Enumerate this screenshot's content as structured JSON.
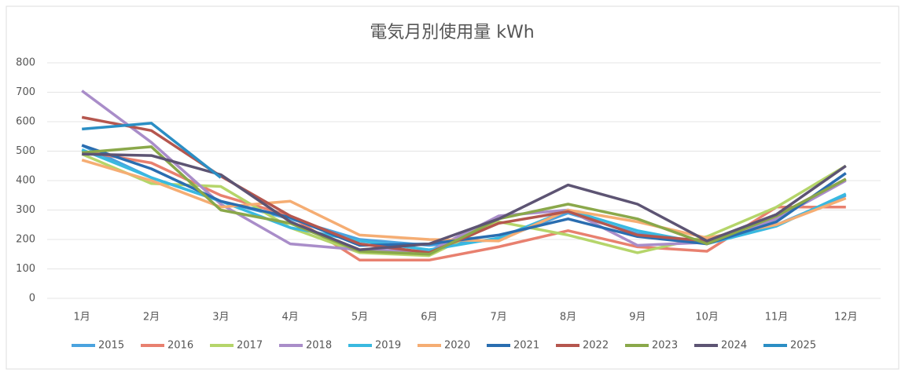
{
  "chart_data": {
    "type": "line",
    "title": "電気月別使用量 kWh",
    "categories": [
      "1月",
      "2月",
      "3月",
      "4月",
      "5月",
      "6月",
      "7月",
      "8月",
      "9月",
      "10月",
      "11月",
      "12月"
    ],
    "ylim": [
      0,
      800
    ],
    "yticks": [
      0,
      100,
      200,
      300,
      400,
      500,
      600,
      700,
      800
    ],
    "grid": true,
    "legend": "bottom",
    "series": [
      {
        "name": "2015",
        "color": "#4aa3df",
        "values": [
          520,
          410,
          330,
          270,
          200,
          180,
          200,
          290,
          220,
          190,
          250,
          350
        ]
      },
      {
        "name": "2016",
        "color": "#e8806f",
        "values": [
          500,
          460,
          350,
          280,
          130,
          130,
          175,
          230,
          175,
          160,
          310,
          310
        ]
      },
      {
        "name": "2017",
        "color": "#b5d56a",
        "values": [
          490,
          390,
          380,
          240,
          155,
          145,
          260,
          215,
          155,
          210,
          310,
          450
        ]
      },
      {
        "name": "2018",
        "color": "#a98dc9",
        "values": [
          705,
          530,
          320,
          185,
          165,
          160,
          280,
          300,
          180,
          190,
          270,
          400
        ]
      },
      {
        "name": "2019",
        "color": "#39b9e0",
        "values": [
          505,
          410,
          330,
          240,
          195,
          165,
          205,
          300,
          230,
          185,
          245,
          355
        ]
      },
      {
        "name": "2020",
        "color": "#f5ad73",
        "values": [
          470,
          400,
          310,
          330,
          215,
          200,
          195,
          300,
          260,
          205,
          250,
          340
        ]
      },
      {
        "name": "2021",
        "color": "#2a6db0",
        "values": [
          520,
          440,
          330,
          275,
          180,
          185,
          215,
          270,
          210,
          185,
          260,
          425
        ]
      },
      {
        "name": "2022",
        "color": "#b5564e",
        "values": [
          615,
          570,
          415,
          280,
          185,
          155,
          255,
          295,
          215,
          195,
          280,
          405
        ]
      },
      {
        "name": "2023",
        "color": "#8aa84a",
        "values": [
          495,
          515,
          300,
          255,
          160,
          150,
          270,
          320,
          270,
          185,
          280,
          405
        ]
      },
      {
        "name": "2024",
        "color": "#5d5473",
        "values": [
          490,
          485,
          420,
          260,
          165,
          185,
          270,
          385,
          320,
          195,
          285,
          450
        ]
      },
      {
        "name": "2025",
        "color": "#2b8ec4",
        "values": [
          575,
          595,
          410,
          null,
          null,
          null,
          null,
          null,
          null,
          null,
          null,
          null
        ]
      }
    ]
  }
}
